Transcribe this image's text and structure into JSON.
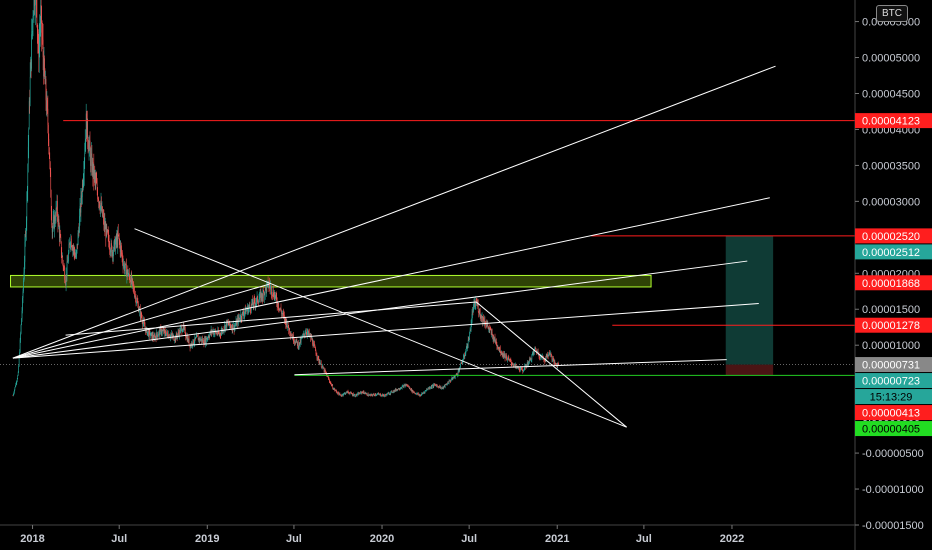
{
  "currency": "BTC",
  "colors": {
    "background": "#000000",
    "grid_line": "#3a3a3a",
    "candle_up": "#26a69a",
    "candle_down": "#ef5350",
    "trendline": "#ffffff",
    "resistance_line": "#ff1e1e",
    "support_line": "#22cc22",
    "zone_fill": "#3f5a08",
    "zone_border": "#b0ff2e",
    "long_target_fill": "#0f3b35",
    "long_stop_fill": "#4a1414"
  },
  "chart_data": {
    "type": "candlestick",
    "y_axis": {
      "min": -1.5e-05,
      "max": 5.8e-05,
      "scale": "linear",
      "ticks": [
        "0.00005500",
        "0.00005000",
        "0.00004500",
        "0.00004000",
        "0.00003500",
        "0.00003000",
        "0.00002500",
        "0.00002000",
        "0.00001500",
        "0.00001000",
        "0.00000500",
        "0.00000000",
        "-0.00000500",
        "-0.00001000",
        "-0.00001500"
      ]
    },
    "x_axis": {
      "range": [
        "2017-10-24",
        "2022-09-14"
      ],
      "ticks": [
        {
          "label": "2018",
          "date": "2017-12-31"
        },
        {
          "label": "Jul",
          "date": "2018-06-30"
        },
        {
          "label": "2019",
          "date": "2018-12-31"
        },
        {
          "label": "Jul",
          "date": "2019-06-30"
        },
        {
          "label": "2020",
          "date": "2019-12-31"
        },
        {
          "label": "Jul",
          "date": "2020-06-30"
        },
        {
          "label": "2021",
          "date": "2020-12-31"
        },
        {
          "label": "Jul",
          "date": "2021-06-30"
        },
        {
          "label": "2022",
          "date": "2021-12-31"
        }
      ]
    },
    "price_path": [
      [
        "2017-11-20",
        3e-06
      ],
      [
        "2017-12-01",
        6e-06
      ],
      [
        "2017-12-10",
        1.6e-05
      ],
      [
        "2017-12-18",
        2.8e-05
      ],
      [
        "2017-12-25",
        4.5e-05
      ],
      [
        "2018-01-01",
        5.7e-05
      ],
      [
        "2018-01-07",
        6.1e-05
      ],
      [
        "2018-01-12",
        5e-05
      ],
      [
        "2018-01-17",
        5.6e-05
      ],
      [
        "2018-01-24",
        4.8e-05
      ],
      [
        "2018-02-02",
        4e-05
      ],
      [
        "2018-02-10",
        2.6e-05
      ],
      [
        "2018-02-20",
        2.9e-05
      ],
      [
        "2018-03-01",
        2.3e-05
      ],
      [
        "2018-03-10",
        1.9e-05
      ],
      [
        "2018-03-20",
        2.5e-05
      ],
      [
        "2018-04-01",
        2.2e-05
      ],
      [
        "2018-04-15",
        3.3e-05
      ],
      [
        "2018-04-22",
        4.1e-05
      ],
      [
        "2018-05-01",
        3.6e-05
      ],
      [
        "2018-05-10",
        3.3e-05
      ],
      [
        "2018-05-20",
        3e-05
      ],
      [
        "2018-06-01",
        2.6e-05
      ],
      [
        "2018-06-15",
        2.3e-05
      ],
      [
        "2018-06-28",
        2.5e-05
      ],
      [
        "2018-07-10",
        2.1e-05
      ],
      [
        "2018-07-25",
        1.9e-05
      ],
      [
        "2018-08-10",
        1.5e-05
      ],
      [
        "2018-08-25",
        1.2e-05
      ],
      [
        "2018-09-10",
        1.1e-05
      ],
      [
        "2018-09-25",
        1.2e-05
      ],
      [
        "2018-10-10",
        1.15e-05
      ],
      [
        "2018-10-25",
        1.1e-05
      ],
      [
        "2018-11-10",
        1.25e-05
      ],
      [
        "2018-11-25",
        1e-05
      ],
      [
        "2018-12-10",
        1.1e-05
      ],
      [
        "2018-12-25",
        1.05e-05
      ],
      [
        "2019-01-10",
        1.2e-05
      ],
      [
        "2019-01-25",
        1.15e-05
      ],
      [
        "2019-02-10",
        1.3e-05
      ],
      [
        "2019-02-25",
        1.25e-05
      ],
      [
        "2019-03-10",
        1.4e-05
      ],
      [
        "2019-03-25",
        1.5e-05
      ],
      [
        "2019-04-10",
        1.6e-05
      ],
      [
        "2019-04-25",
        1.7e-05
      ],
      [
        "2019-05-08",
        1.85e-05
      ],
      [
        "2019-05-20",
        1.7e-05
      ],
      [
        "2019-06-01",
        1.5e-05
      ],
      [
        "2019-06-15",
        1.3e-05
      ],
      [
        "2019-06-28",
        1.1e-05
      ],
      [
        "2019-07-10",
        1e-05
      ],
      [
        "2019-07-25",
        1.2e-05
      ],
      [
        "2019-08-05",
        1.1e-05
      ],
      [
        "2019-08-20",
        8e-06
      ],
      [
        "2019-09-05",
        6e-06
      ],
      [
        "2019-09-20",
        4e-06
      ],
      [
        "2019-10-05",
        3e-06
      ],
      [
        "2019-10-20",
        3.5e-06
      ],
      [
        "2019-11-05",
        3e-06
      ],
      [
        "2019-11-20",
        3.5e-06
      ],
      [
        "2019-12-05",
        3e-06
      ],
      [
        "2019-12-20",
        3.2e-06
      ],
      [
        "2020-01-05",
        3e-06
      ],
      [
        "2020-01-20",
        3.5e-06
      ],
      [
        "2020-02-05",
        4e-06
      ],
      [
        "2020-02-20",
        4.5e-06
      ],
      [
        "2020-03-05",
        3.5e-06
      ],
      [
        "2020-03-20",
        3e-06
      ],
      [
        "2020-04-05",
        4e-06
      ],
      [
        "2020-04-20",
        4.5e-06
      ],
      [
        "2020-05-05",
        4e-06
      ],
      [
        "2020-05-20",
        5e-06
      ],
      [
        "2020-06-05",
        6e-06
      ],
      [
        "2020-06-20",
        8.5e-06
      ],
      [
        "2020-06-30",
        1.1e-05
      ],
      [
        "2020-07-08",
        1.5e-05
      ],
      [
        "2020-07-15",
        1.6e-05
      ],
      [
        "2020-07-25",
        1.4e-05
      ],
      [
        "2020-08-05",
        1.3e-05
      ],
      [
        "2020-08-20",
        1.1e-05
      ],
      [
        "2020-09-05",
        9e-06
      ],
      [
        "2020-09-20",
        8e-06
      ],
      [
        "2020-10-05",
        7e-06
      ],
      [
        "2020-10-20",
        6.5e-06
      ],
      [
        "2020-11-05",
        8e-06
      ],
      [
        "2020-11-15",
        9.5e-06
      ],
      [
        "2020-11-25",
        8.5e-06
      ],
      [
        "2020-12-05",
        8e-06
      ],
      [
        "2020-12-15",
        9e-06
      ],
      [
        "2020-12-25",
        7.5e-06
      ],
      [
        "2021-01-03",
        7.3e-06
      ]
    ],
    "price_labels": [
      {
        "value": "0.00004123",
        "y": 4.123e-05,
        "bg": "#ff1e1e",
        "fg": "#ffffff"
      },
      {
        "value": "0.00002520",
        "y": 2.52e-05,
        "bg": "#ff1e1e",
        "fg": "#ffffff"
      },
      {
        "value": "0.00002512",
        "y": 2.512e-05,
        "bg": "#26a69a",
        "fg": "#ffffff"
      },
      {
        "value": "0.00001868",
        "y": 1.868e-05,
        "bg": "#ff1e1e",
        "fg": "#ffffff"
      },
      {
        "value": "0.00001278",
        "y": 1.278e-05,
        "bg": "#ff1e1e",
        "fg": "#ffffff"
      },
      {
        "value": "0.00000731",
        "y": 7.31e-06,
        "bg": "#888888",
        "fg": "#ffffff"
      },
      {
        "value": "0.00000723",
        "y": 7.23e-06,
        "bg": "#26a69a",
        "fg": "#ffffff"
      },
      {
        "value": "15:13:29",
        "y": 6.1e-06,
        "bg": "#26a69a",
        "fg": "#000000"
      },
      {
        "value": "0.00000413",
        "y": 4.13e-06,
        "bg": "#ff1e1e",
        "fg": "#ffffff"
      },
      {
        "value": "0.00000405",
        "y": 4.05e-06,
        "bg": "#22dd22",
        "fg": "#000000"
      }
    ],
    "horizontal_levels": [
      {
        "from": "2018-03-05",
        "to": "2022-09-14",
        "y": 4.123e-05,
        "color": "#ff1e1e"
      },
      {
        "from": "2021-03-12",
        "to": "2022-09-14",
        "y": 2.52e-05,
        "color": "#ff1e1e"
      },
      {
        "from": "2021-04-25",
        "to": "2022-09-14",
        "y": 1.278e-05,
        "color": "#ff1e1e"
      },
      {
        "from": "2019-07-01",
        "to": "2022-09-14",
        "y": 5.8e-06,
        "color": "#22cc22"
      }
    ],
    "zone": {
      "from": "2017-11-15",
      "to": "2021-07-15",
      "top": 1.97e-05,
      "bottom": 1.81e-05
    },
    "position_box": {
      "from": "2021-12-18",
      "to": "2022-03-27",
      "entry": 7.3e-06,
      "target": 2.52e-05,
      "stop": 5.8e-06
    },
    "trendlines": [
      {
        "x1": "2017-11-20",
        "y1": 8.2e-06,
        "x2": "2022-04-01",
        "y2": 4.88e-05
      },
      {
        "x1": "2017-11-20",
        "y1": 8.2e-06,
        "x2": "2022-03-20",
        "y2": 3.05e-05
      },
      {
        "x1": "2017-11-20",
        "y1": 8.2e-06,
        "x2": "2022-02-01",
        "y2": 2.17e-05
      },
      {
        "x1": "2017-11-20",
        "y1": 8.2e-06,
        "x2": "2022-02-25",
        "y2": 1.58e-05
      },
      {
        "x1": "2017-11-20",
        "y1": 8.2e-06,
        "x2": "2019-05-10",
        "y2": 1.85e-05
      },
      {
        "x1": "2018-08-01",
        "y1": 2.62e-05,
        "x2": "2021-05-25",
        "y2": -1.4e-06
      },
      {
        "x1": "2019-07-01",
        "y1": 5.9e-06,
        "x2": "2021-12-20",
        "y2": 8e-06
      },
      {
        "x1": "2020-07-15",
        "y1": 1.6e-05,
        "x2": "2021-05-25",
        "y2": -1.4e-06
      },
      {
        "x1": "2020-07-15",
        "y1": 1.6e-05,
        "x2": "2018-03-10",
        "y2": 1.14e-05
      }
    ]
  }
}
